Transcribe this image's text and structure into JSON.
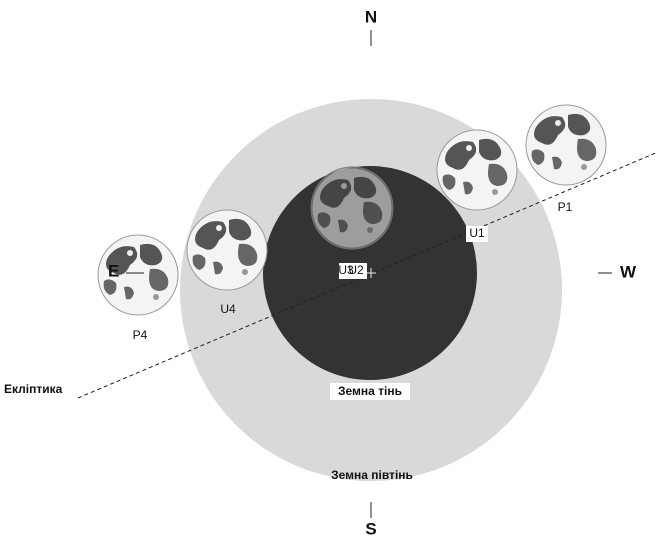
{
  "compass": {
    "north": "N",
    "south": "S",
    "west": "W",
    "east": "E"
  },
  "regions": {
    "umbra": "Земна тінь",
    "penumbra": "Земна півтінь"
  },
  "ecliptic": "Екліптика",
  "contacts": {
    "p1": "P1",
    "u1": "U1",
    "u2": "U2",
    "u3": "U3",
    "u4": "U4",
    "p4": "P4"
  }
}
